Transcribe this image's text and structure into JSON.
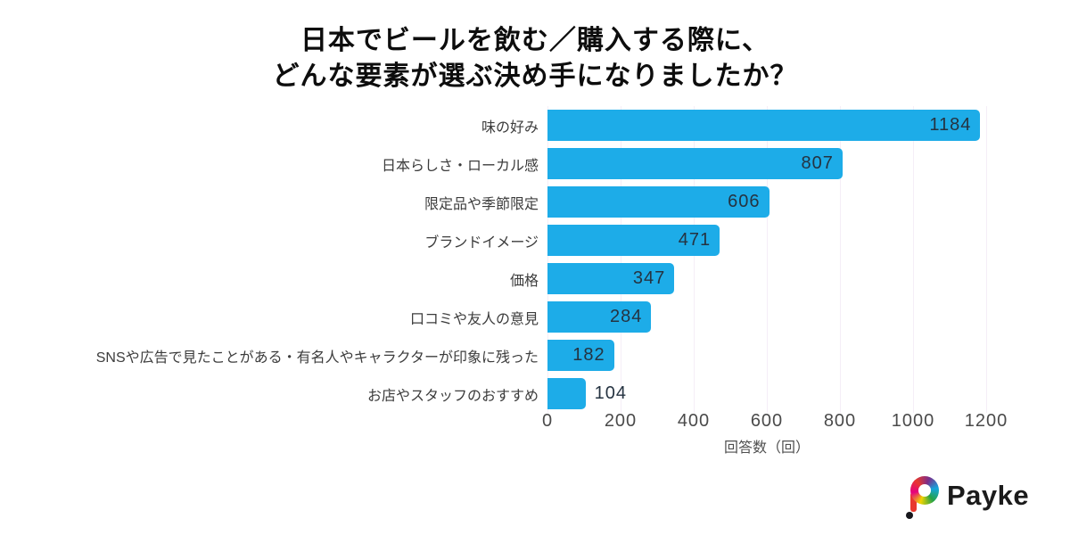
{
  "title": {
    "line1": "日本でビールを飲む／購入する際に、",
    "line2": "どんな要素が選ぶ決め手になりましたか？"
  },
  "chart_data": {
    "type": "bar",
    "orientation": "horizontal",
    "title": "日本でビールを飲む／購入する際に、どんな要素が選ぶ決め手になりましたか？",
    "categories": [
      "味の好み",
      "日本らしさ・ローカル感",
      "限定品や季節限定",
      "ブランドイメージ",
      "価格",
      "口コミや友人の意見",
      "SNSや広告で見たことがある・有名人やキャラクターが印象に残った",
      "お店やスタッフのおすすめ"
    ],
    "values": [
      1184,
      807,
      606,
      471,
      347,
      284,
      182,
      104
    ],
    "xlabel": "回答数（回）",
    "ylabel": "",
    "xticks": [
      0,
      200,
      400,
      600,
      800,
      1000,
      1200
    ],
    "xlim": [
      0,
      1200
    ],
    "grid": true,
    "legend": false,
    "bar_color": "#1dace8",
    "grid_color": "#f5eef7",
    "value_label_color": "#253341"
  },
  "footer": {
    "brand": "Payke"
  }
}
